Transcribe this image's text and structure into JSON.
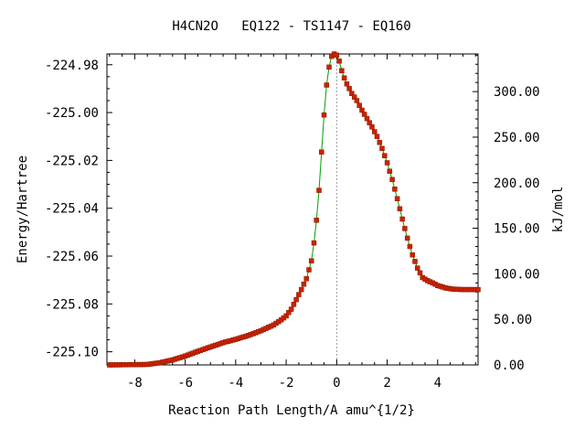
{
  "chart_data": {
    "type": "line",
    "title": "H4CN2O   EQ122 - TS1147 - EQ160",
    "xlabel": "Reaction Path Length/A amu^{1/2}",
    "ylabel": "Energy/Hartree",
    "y2label": "kJ/mol",
    "xlim": [
      -9.1,
      5.6
    ],
    "ylim": [
      -225.1055,
      -224.9755
    ],
    "y2lim": [
      0.0,
      341.3
    ],
    "x_ticks": [
      -8,
      -6,
      -4,
      -2,
      0,
      2,
      4
    ],
    "x_tick_labels": [
      "-8",
      "-6",
      "-4",
      "-2",
      "0",
      "2",
      "4"
    ],
    "y_ticks": [
      -224.98,
      -225.0,
      -225.02,
      -225.04,
      -225.06,
      -225.08,
      -225.1
    ],
    "y_tick_labels": [
      "-224.98",
      "-225.00",
      "-225.02",
      "-225.04",
      "-225.06",
      "-225.08",
      "-225.10"
    ],
    "y2_ticks": [
      0,
      50,
      100,
      150,
      200,
      250,
      300
    ],
    "y2_tick_labels": [
      "0.00",
      "50.00",
      "100.00",
      "150.00",
      "200.00",
      "250.00",
      "300.00"
    ],
    "ts_marker_x": 0.0,
    "grid": false,
    "colors": {
      "line": "#00a000",
      "points": "#cc2200",
      "ts_line": "#999999"
    },
    "series": [
      {
        "x": [
          -9.0,
          -8.2,
          -7.5,
          -7.0,
          -6.5,
          -6.0,
          -5.5,
          -5.0,
          -4.5,
          -4.0,
          -3.5,
          -3.0,
          -2.5,
          -2.2,
          -2.0,
          -1.8,
          -1.6,
          -1.4,
          -1.2,
          -1.0,
          -0.9,
          -0.8,
          -0.7,
          -0.6,
          -0.5,
          -0.4,
          -0.3,
          -0.2,
          -0.1,
          0.0,
          0.1,
          0.2,
          0.3,
          0.4,
          0.6,
          0.8,
          1.0,
          1.2,
          1.4,
          1.6,
          1.8,
          2.0,
          2.2,
          2.4,
          2.6,
          2.8,
          3.0,
          3.2,
          3.4,
          3.6,
          3.8,
          4.0,
          4.3,
          4.6,
          5.0,
          5.3,
          5.6
        ],
        "y": [
          -225.1055,
          -225.1054,
          -225.1053,
          -225.1046,
          -225.1034,
          -225.1018,
          -225.0998,
          -225.098,
          -225.0962,
          -225.0948,
          -225.0932,
          -225.0912,
          -225.0888,
          -225.0867,
          -225.085,
          -225.0822,
          -225.0782,
          -225.074,
          -225.0695,
          -225.062,
          -225.0545,
          -225.045,
          -225.0325,
          -225.0165,
          -225.001,
          -224.9885,
          -224.981,
          -224.9765,
          -224.9755,
          -224.976,
          -224.9785,
          -224.9825,
          -224.9855,
          -224.988,
          -224.992,
          -224.995,
          -224.999,
          -225.0025,
          -225.006,
          -225.01,
          -225.015,
          -225.021,
          -225.028,
          -225.036,
          -225.0445,
          -225.0525,
          -225.0595,
          -225.065,
          -225.069,
          -225.0703,
          -225.0712,
          -225.0723,
          -225.0733,
          -225.0738,
          -225.074,
          -225.074,
          -225.074
        ]
      }
    ]
  }
}
